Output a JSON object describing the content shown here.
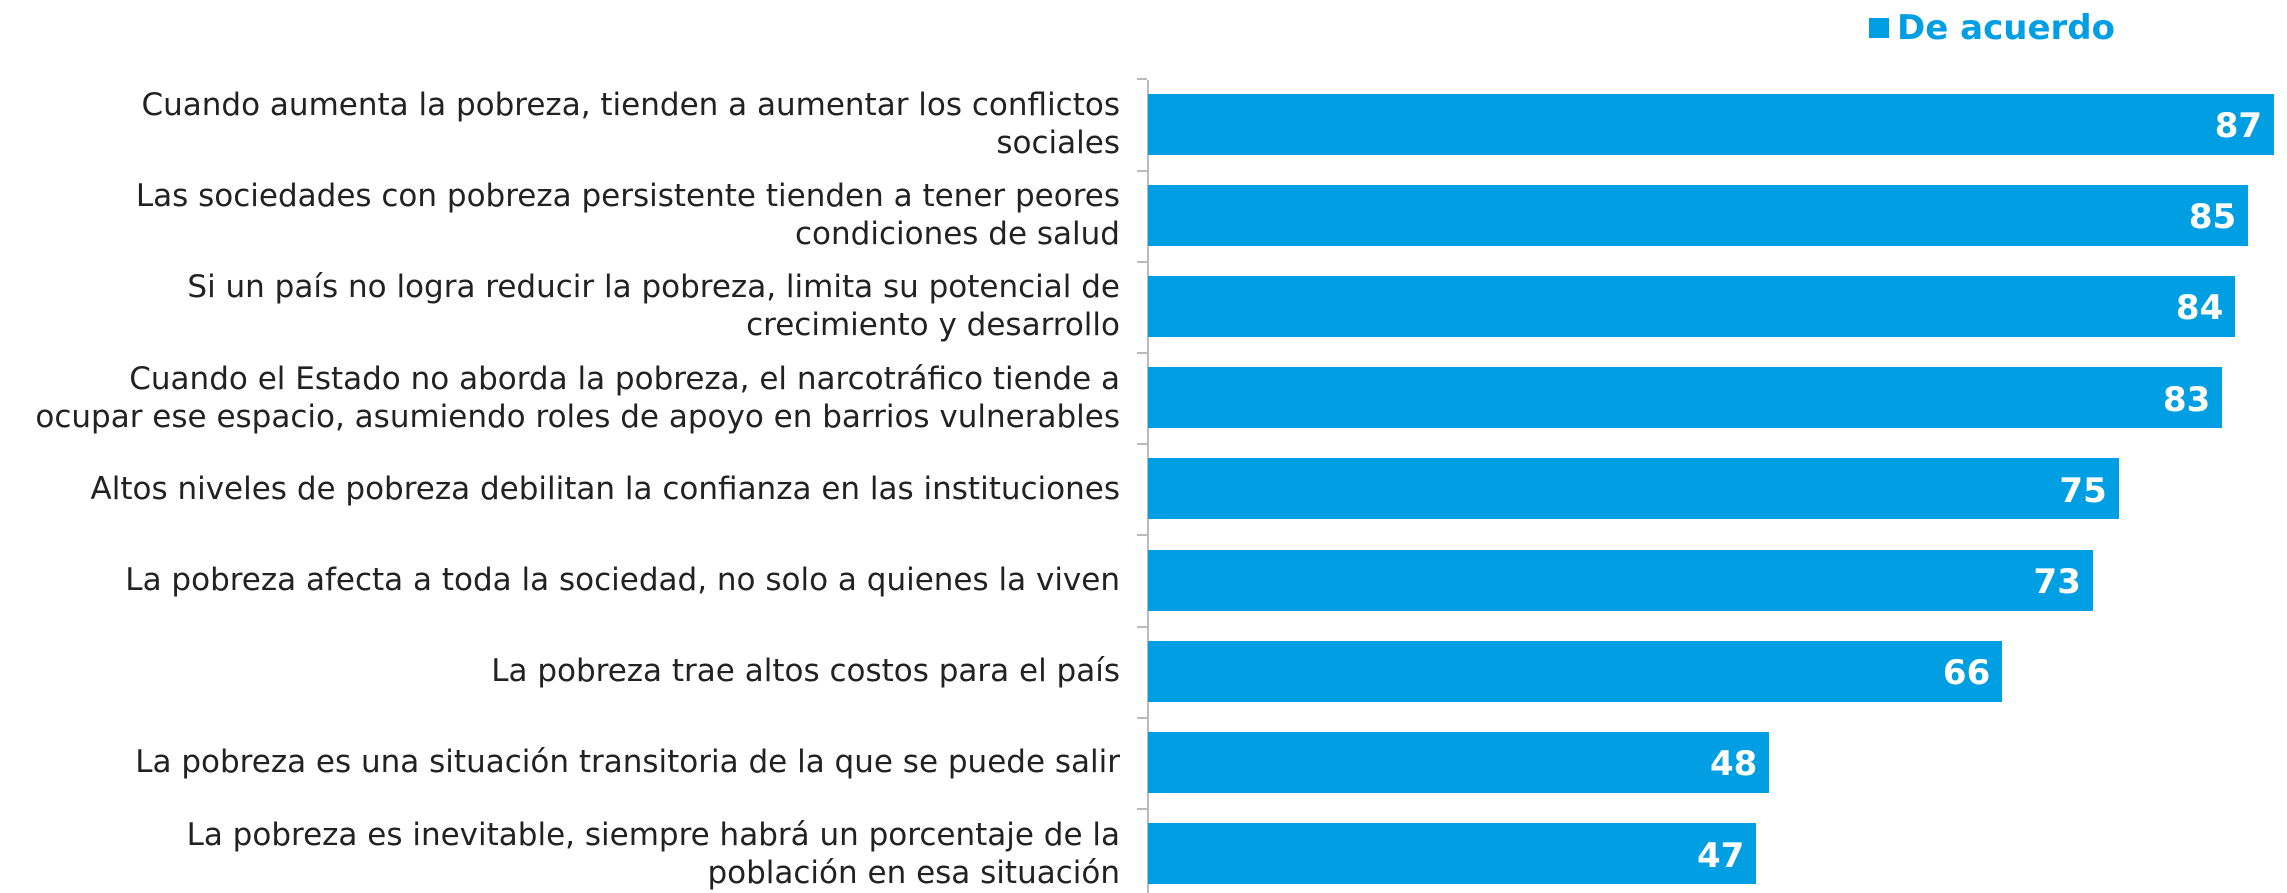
{
  "chart_data": {
    "type": "barh",
    "categories": [
      "Cuando aumenta la pobreza, tienden a aumentar los conflictos\nsociales",
      "Las sociedades con pobreza persistente tienden a tener peores\ncondiciones de salud",
      "Si un país no logra reducir la pobreza, limita su potencial de\ncrecimiento y desarrollo",
      "Cuando el Estado no aborda la pobreza, el narcotráfico tiende a\nocupar ese espacio, asumiendo roles de apoyo en barrios vulnerables",
      "Altos niveles de pobreza debilitan la confianza en las instituciones",
      "La pobreza afecta a toda la sociedad, no solo a quienes la viven",
      "La pobreza trae altos costos para el país",
      "La pobreza es una situación transitoria de la que se puede salir",
      "La pobreza es inevitable, siempre habrá un porcentaje de la\npoblación en esa situación"
    ],
    "series": [
      {
        "name": "De acuerdo",
        "color": "#009fe3",
        "values": [
          87,
          85,
          84,
          83,
          75,
          73,
          66,
          48,
          47
        ]
      }
    ],
    "xlim": [
      0,
      88
    ],
    "legend": "top-right"
  }
}
